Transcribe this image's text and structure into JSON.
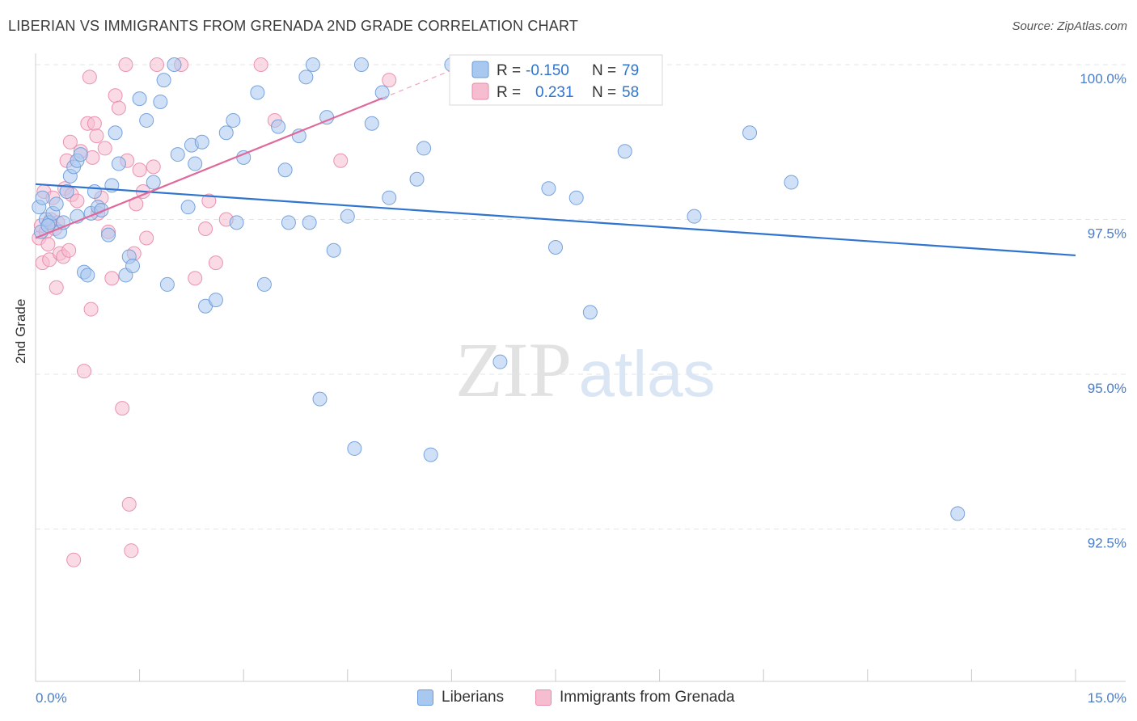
{
  "header": {
    "title": "LIBERIAN VS IMMIGRANTS FROM GRENADA 2ND GRADE CORRELATION CHART",
    "source": "Source: ZipAtlas.com"
  },
  "watermark": {
    "zip": "ZIP",
    "atlas": "atlas"
  },
  "colors": {
    "blue_fill": "#a9c8f0",
    "blue_stroke": "#6c9ad8",
    "blue_line": "#2f74cf",
    "pink_fill": "#f6bccf",
    "pink_stroke": "#e88aa8",
    "pink_line": "#e0689a",
    "tick_text": "#4a7cc7"
  },
  "legend_box": {
    "rows": [
      {
        "r_label": "R =",
        "r_value": "-0.150",
        "n_label": "N =",
        "n_value": "79"
      },
      {
        "r_label": "R =",
        "r_value": "0.231",
        "n_label": "N =",
        "n_value": "58"
      }
    ]
  },
  "chart_data": {
    "type": "scatter",
    "ylabel": "2nd Grade",
    "xlim": [
      0,
      15
    ],
    "ylim": [
      90.0,
      100.6
    ],
    "x_tick_labels": [
      "0.0%",
      "15.0%"
    ],
    "y_ticks": [
      {
        "value": 100.0,
        "label": "100.0%"
      },
      {
        "value": 97.5,
        "label": "97.5%"
      },
      {
        "value": 95.0,
        "label": "95.0%"
      },
      {
        "value": 92.5,
        "label": "92.5%"
      }
    ],
    "grid": "horizontal dashed",
    "legend_position": "bottom",
    "series": [
      {
        "name": "Liberians",
        "color": "#a9c8f0",
        "r": -0.15,
        "n": 79,
        "trend": {
          "x": [
            0.0,
            15.0
          ],
          "y": [
            98.07,
            96.92
          ]
        },
        "points": [
          [
            0.05,
            97.7
          ],
          [
            0.1,
            97.85
          ],
          [
            0.15,
            97.5
          ],
          [
            0.2,
            97.45
          ],
          [
            0.25,
            97.6
          ],
          [
            0.3,
            97.75
          ],
          [
            0.35,
            97.3
          ],
          [
            0.4,
            97.45
          ],
          [
            0.45,
            97.95
          ],
          [
            0.5,
            98.2
          ],
          [
            0.55,
            98.35
          ],
          [
            0.6,
            98.45
          ],
          [
            0.65,
            98.55
          ],
          [
            0.7,
            96.65
          ],
          [
            0.75,
            96.6
          ],
          [
            0.8,
            97.6
          ],
          [
            0.85,
            97.95
          ],
          [
            0.9,
            97.7
          ],
          [
            0.95,
            97.65
          ],
          [
            1.05,
            97.25
          ],
          [
            1.1,
            98.05
          ],
          [
            1.15,
            98.9
          ],
          [
            1.2,
            98.4
          ],
          [
            1.3,
            96.6
          ],
          [
            1.35,
            96.9
          ],
          [
            1.4,
            96.75
          ],
          [
            1.5,
            99.45
          ],
          [
            1.6,
            99.1
          ],
          [
            1.7,
            98.1
          ],
          [
            1.8,
            99.4
          ],
          [
            1.85,
            99.75
          ],
          [
            1.9,
            96.45
          ],
          [
            2.0,
            100.0
          ],
          [
            2.05,
            98.55
          ],
          [
            2.2,
            97.7
          ],
          [
            2.25,
            98.7
          ],
          [
            2.3,
            98.4
          ],
          [
            2.4,
            98.75
          ],
          [
            2.45,
            96.1
          ],
          [
            2.6,
            96.2
          ],
          [
            2.75,
            98.9
          ],
          [
            2.85,
            99.1
          ],
          [
            2.9,
            97.45
          ],
          [
            3.0,
            98.5
          ],
          [
            3.2,
            99.55
          ],
          [
            3.3,
            96.45
          ],
          [
            3.5,
            99.0
          ],
          [
            3.6,
            98.3
          ],
          [
            3.65,
            97.45
          ],
          [
            3.8,
            98.85
          ],
          [
            3.9,
            99.8
          ],
          [
            3.95,
            97.45
          ],
          [
            4.0,
            100.0
          ],
          [
            4.1,
            94.6
          ],
          [
            4.2,
            99.15
          ],
          [
            4.3,
            97.0
          ],
          [
            4.5,
            97.55
          ],
          [
            4.6,
            93.8
          ],
          [
            4.7,
            100.0
          ],
          [
            4.85,
            99.05
          ],
          [
            5.0,
            99.55
          ],
          [
            5.1,
            97.85
          ],
          [
            5.5,
            98.15
          ],
          [
            5.6,
            98.65
          ],
          [
            5.7,
            93.7
          ],
          [
            6.0,
            100.0
          ],
          [
            6.7,
            95.2
          ],
          [
            7.4,
            98.0
          ],
          [
            7.5,
            97.05
          ],
          [
            7.8,
            97.85
          ],
          [
            8.0,
            96.0
          ],
          [
            8.5,
            98.6
          ],
          [
            9.5,
            97.55
          ],
          [
            10.3,
            98.9
          ],
          [
            10.9,
            98.1
          ],
          [
            13.3,
            92.75
          ],
          [
            0.08,
            97.3
          ],
          [
            0.18,
            97.4
          ],
          [
            0.6,
            97.55
          ]
        ]
      },
      {
        "name": "Immigrants from Grenada",
        "color": "#f6bccf",
        "r": 0.231,
        "n": 58,
        "trend": {
          "x": [
            0.0,
            6.2
          ],
          "y": [
            97.2,
            100.0
          ]
        },
        "points": [
          [
            0.05,
            97.2
          ],
          [
            0.08,
            97.4
          ],
          [
            0.1,
            96.8
          ],
          [
            0.12,
            97.95
          ],
          [
            0.15,
            97.3
          ],
          [
            0.18,
            97.1
          ],
          [
            0.2,
            96.85
          ],
          [
            0.22,
            97.5
          ],
          [
            0.25,
            97.85
          ],
          [
            0.3,
            96.4
          ],
          [
            0.32,
            97.45
          ],
          [
            0.35,
            96.95
          ],
          [
            0.4,
            96.9
          ],
          [
            0.42,
            98.0
          ],
          [
            0.45,
            98.45
          ],
          [
            0.48,
            97.0
          ],
          [
            0.5,
            98.75
          ],
          [
            0.52,
            97.9
          ],
          [
            0.55,
            92.0
          ],
          [
            0.6,
            97.8
          ],
          [
            0.65,
            98.6
          ],
          [
            0.7,
            95.05
          ],
          [
            0.75,
            99.05
          ],
          [
            0.78,
            99.8
          ],
          [
            0.8,
            96.05
          ],
          [
            0.82,
            98.5
          ],
          [
            0.85,
            99.05
          ],
          [
            0.88,
            98.85
          ],
          [
            0.9,
            97.6
          ],
          [
            0.95,
            97.85
          ],
          [
            1.0,
            98.65
          ],
          [
            1.05,
            97.3
          ],
          [
            1.1,
            96.55
          ],
          [
            1.15,
            99.5
          ],
          [
            1.2,
            99.3
          ],
          [
            1.25,
            94.45
          ],
          [
            1.3,
            100.0
          ],
          [
            1.32,
            98.45
          ],
          [
            1.35,
            92.9
          ],
          [
            1.38,
            92.15
          ],
          [
            1.42,
            96.95
          ],
          [
            1.45,
            97.75
          ],
          [
            1.5,
            98.3
          ],
          [
            1.55,
            97.95
          ],
          [
            1.6,
            97.2
          ],
          [
            1.75,
            100.0
          ],
          [
            2.1,
            100.0
          ],
          [
            2.3,
            96.55
          ],
          [
            2.45,
            97.35
          ],
          [
            2.5,
            97.8
          ],
          [
            2.6,
            96.8
          ],
          [
            2.75,
            97.5
          ],
          [
            3.25,
            100.0
          ],
          [
            3.45,
            99.1
          ],
          [
            4.4,
            98.45
          ],
          [
            5.1,
            99.75
          ],
          [
            1.7,
            98.35
          ],
          [
            0.28,
            97.35
          ]
        ]
      }
    ]
  }
}
